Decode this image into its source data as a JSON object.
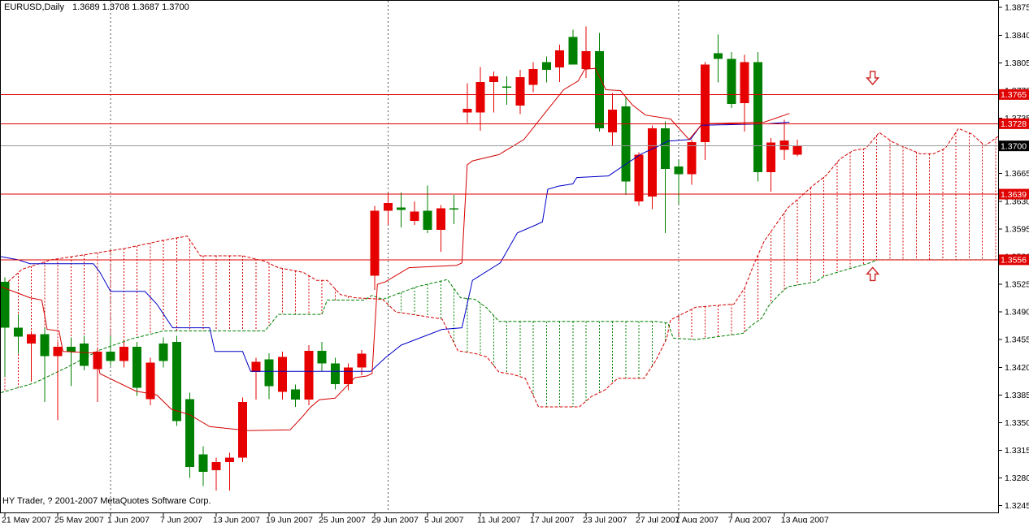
{
  "window": {
    "title": "EURUSD,Daily",
    "quote": "1.3689 1.3708 1.3687 1.3700"
  },
  "footer": {
    "copyright": "HY Trader, ? 2001-2007 MetaQuotes Software Corp."
  },
  "colors": {
    "background": "#ffffff",
    "frame": "#000000",
    "bull": "#e60000",
    "bear": "#008000",
    "doji_accent": "#00cc00",
    "tenkan": "#d40000",
    "kijun": "#0000c8",
    "senkou_a": "#d40000",
    "senkou_b": "#008000",
    "hatch_red": "#d40000",
    "hatch_green": "#008000",
    "price_line": "#e00000",
    "price_tag_bg": "#e00000",
    "price_tag_text": "#ffffff",
    "current_line": "#999999",
    "current_tag_bg": "#000000",
    "current_tag_text": "#ffffff",
    "separator": "#555555",
    "axis_text": "#000000",
    "arrow": "#cc2222"
  },
  "chart_data": {
    "type": "candlestick",
    "symbol": "EURUSD",
    "timeframe": "Daily",
    "title": "EURUSD,Daily  1.3689 1.3708 1.3687 1.3700",
    "ohlc_display": {
      "open": "1.3689",
      "high": "1.3708",
      "low": "1.3687",
      "close": "1.3700"
    },
    "y_axis": {
      "min": 1.3245,
      "max": 1.3875,
      "tick_step": 0.0035,
      "ticks": [
        1.3875,
        1.384,
        1.3805,
        1.377,
        1.3735,
        1.37,
        1.3665,
        1.363,
        1.3595,
        1.356,
        1.3525,
        1.349,
        1.3455,
        1.342,
        1.3385,
        1.335,
        1.3315,
        1.328,
        1.3245
      ]
    },
    "x_axis": {
      "ticks": [
        {
          "label": "21 May 2007",
          "index": 0
        },
        {
          "label": "25 May 2007",
          "index": 4
        },
        {
          "label": "1 Jun 2007",
          "index": 8
        },
        {
          "label": "7 Jun 2007",
          "index": 12
        },
        {
          "label": "13 Jun 2007",
          "index": 16
        },
        {
          "label": "19 Jun 2007",
          "index": 20
        },
        {
          "label": "25 Jun 2007",
          "index": 24
        },
        {
          "label": "29 Jun 2007",
          "index": 28
        },
        {
          "label": "5 Jul 2007",
          "index": 32
        },
        {
          "label": "11 Jul 2007",
          "index": 36
        },
        {
          "label": "17 Jul 2007",
          "index": 40
        },
        {
          "label": "23 Jul 2007",
          "index": 44
        },
        {
          "label": "27 Jul 2007",
          "index": 48
        },
        {
          "label": "1 Aug 2007",
          "index": 51
        },
        {
          "label": "7 Aug 2007",
          "index": 55
        },
        {
          "label": "13 Aug 2007",
          "index": 59
        }
      ]
    },
    "price_lines": [
      {
        "price": 1.3765,
        "label": "1.3765"
      },
      {
        "price": 1.3728,
        "label": "1.3728"
      },
      {
        "price": 1.3639,
        "label": "1.3639"
      },
      {
        "price": 1.3556,
        "label": "1.3556"
      }
    ],
    "current_price_line": {
      "price": 1.37,
      "label": "1.3700"
    },
    "separators": [
      8,
      29,
      51
    ],
    "arrows": [
      {
        "dir": "down",
        "index": 65.7,
        "price": 1.3786
      },
      {
        "dir": "up",
        "index": 65.7,
        "price": 1.3538
      }
    ],
    "candles": [
      [
        1.3528,
        1.3534,
        1.3408,
        1.347
      ],
      [
        1.347,
        1.3487,
        1.3437,
        1.3459
      ],
      [
        1.345,
        1.3466,
        1.3402,
        1.3462
      ],
      [
        1.3462,
        1.347,
        1.3376,
        1.3434
      ],
      [
        1.3434,
        1.3452,
        1.3353,
        1.3446
      ],
      [
        1.3446,
        1.3458,
        1.3396,
        1.344
      ],
      [
        1.345,
        1.346,
        1.3416,
        1.3422
      ],
      [
        1.3418,
        1.3444,
        1.3376,
        1.344
      ],
      [
        1.344,
        1.346,
        1.3422,
        1.3428
      ],
      [
        1.3428,
        1.3452,
        1.342,
        1.3446
      ],
      [
        1.3446,
        1.3452,
        1.3384,
        1.3394
      ],
      [
        1.338,
        1.3432,
        1.3372,
        1.3426
      ],
      [
        1.345,
        1.3458,
        1.342,
        1.3428
      ],
      [
        1.3452,
        1.346,
        1.3346,
        1.3352
      ],
      [
        1.338,
        1.3388,
        1.328,
        1.3294
      ],
      [
        1.331,
        1.332,
        1.327,
        1.3288
      ],
      [
        1.329,
        1.3306,
        1.3264,
        1.33
      ],
      [
        1.33,
        1.3312,
        1.3264,
        1.3306
      ],
      [
        1.3306,
        1.3382,
        1.33,
        1.3376
      ],
      [
        1.3414,
        1.3432,
        1.3379,
        1.3427
      ],
      [
        1.343,
        1.3438,
        1.338,
        1.3396
      ],
      [
        1.3389,
        1.344,
        1.3379,
        1.3433
      ],
      [
        1.3392,
        1.3398,
        1.337,
        1.3379
      ],
      [
        1.3379,
        1.3448,
        1.3372,
        1.3441
      ],
      [
        1.3441,
        1.3452,
        1.3415,
        1.3425
      ],
      [
        1.3425,
        1.3432,
        1.3392,
        1.3399
      ],
      [
        1.3399,
        1.3425,
        1.3391,
        1.342
      ],
      [
        1.342,
        1.3442,
        1.341,
        1.3437
      ],
      [
        1.3536,
        1.3624,
        1.3518,
        1.3618
      ],
      [
        1.3618,
        1.364,
        1.36,
        1.3628
      ],
      [
        1.3622,
        1.3641,
        1.3597,
        1.3619
      ],
      [
        1.3605,
        1.363,
        1.36,
        1.3617
      ],
      [
        1.3618,
        1.365,
        1.359,
        1.3594
      ],
      [
        1.3594,
        1.3625,
        1.3566,
        1.3621
      ],
      [
        1.3621,
        1.3638,
        1.3601,
        1.362
      ],
      [
        1.3742,
        1.3779,
        1.3729,
        1.3747
      ],
      [
        1.3742,
        1.38,
        1.3719,
        1.3781
      ],
      [
        1.3781,
        1.3794,
        1.3742,
        1.3788
      ],
      [
        1.3775,
        1.3788,
        1.3752,
        1.3774
      ],
      [
        1.3751,
        1.3796,
        1.374,
        1.3787
      ],
      [
        1.3777,
        1.3806,
        1.3768,
        1.3797
      ],
      [
        1.3806,
        1.3813,
        1.378,
        1.3796
      ],
      [
        1.3799,
        1.3828,
        1.3781,
        1.3821
      ],
      [
        1.3838,
        1.3847,
        1.3804,
        1.3803
      ],
      [
        1.3797,
        1.3851,
        1.3786,
        1.382
      ],
      [
        1.382,
        1.3843,
        1.3718,
        1.3722
      ],
      [
        1.3717,
        1.3767,
        1.37,
        1.3746
      ],
      [
        1.375,
        1.3762,
        1.3638,
        1.3655
      ],
      [
        1.363,
        1.3692,
        1.3624,
        1.3689
      ],
      [
        1.3636,
        1.3726,
        1.362,
        1.3722
      ],
      [
        1.3722,
        1.3731,
        1.359,
        1.3671
      ],
      [
        1.3674,
        1.3682,
        1.3626,
        1.3664
      ],
      [
        1.3664,
        1.3708,
        1.3651,
        1.3705
      ],
      [
        1.3705,
        1.3806,
        1.3682,
        1.3803
      ],
      [
        1.3817,
        1.3841,
        1.378,
        1.381
      ],
      [
        1.381,
        1.3819,
        1.3748,
        1.3753
      ],
      [
        1.3754,
        1.3815,
        1.3718,
        1.3806
      ],
      [
        1.3806,
        1.3819,
        1.3655,
        1.3667
      ],
      [
        1.3667,
        1.371,
        1.3642,
        1.3704
      ],
      [
        1.3695,
        1.3733,
        1.3682,
        1.3707
      ],
      [
        1.3689,
        1.3708,
        1.3687,
        1.37
      ]
    ],
    "ichimoku": {
      "tenkan": [
        [
          -0.3,
          1.3522
        ],
        [
          1.9,
          1.3508
        ],
        [
          2.8,
          1.3505
        ],
        [
          3.2,
          1.3468
        ],
        [
          4.1,
          1.3466
        ],
        [
          4.4,
          1.344
        ],
        [
          6.9,
          1.3438
        ],
        [
          7.2,
          1.3412
        ],
        [
          9.9,
          1.339
        ],
        [
          11.5,
          1.3385
        ],
        [
          12.6,
          1.3367
        ],
        [
          14.0,
          1.336
        ],
        [
          15.5,
          1.3345
        ],
        [
          18.4,
          1.334
        ],
        [
          21.6,
          1.3341
        ],
        [
          22.5,
          1.3357
        ],
        [
          23.1,
          1.3369
        ],
        [
          23.8,
          1.3379
        ],
        [
          25.0,
          1.3381
        ],
        [
          26.5,
          1.3407
        ],
        [
          27.4,
          1.3409
        ],
        [
          27.8,
          1.3412
        ],
        [
          28.2,
          1.3525
        ],
        [
          28.8,
          1.3528
        ],
        [
          30.6,
          1.3546
        ],
        [
          34.2,
          1.3549
        ],
        [
          34.6,
          1.3552
        ],
        [
          35.0,
          1.3676
        ],
        [
          35.4,
          1.3681
        ],
        [
          37.4,
          1.3689
        ],
        [
          39.3,
          1.3708
        ],
        [
          41.1,
          1.3746
        ],
        [
          42.3,
          1.3771
        ],
        [
          43.4,
          1.3782
        ],
        [
          43.9,
          1.3797
        ],
        [
          44.7,
          1.3798
        ],
        [
          45.5,
          1.3771
        ],
        [
          46.6,
          1.377
        ],
        [
          47.5,
          1.3752
        ],
        [
          48.5,
          1.3739
        ],
        [
          50.4,
          1.3734
        ],
        [
          51.8,
          1.3708
        ],
        [
          52.8,
          1.3728
        ],
        [
          57.5,
          1.373
        ],
        [
          59.4,
          1.3741
        ]
      ],
      "kijun": [
        [
          -0.3,
          1.356
        ],
        [
          1.0,
          1.3556
        ],
        [
          1.9,
          1.3551
        ],
        [
          6.7,
          1.3551
        ],
        [
          7.2,
          1.354
        ],
        [
          8.0,
          1.3516
        ],
        [
          10.6,
          1.3516
        ],
        [
          11.5,
          1.35
        ],
        [
          12.7,
          1.347
        ],
        [
          15.5,
          1.347
        ],
        [
          15.9,
          1.344
        ],
        [
          18.0,
          1.344
        ],
        [
          18.6,
          1.3415
        ],
        [
          27.7,
          1.3415
        ],
        [
          28.8,
          1.3432
        ],
        [
          30.0,
          1.3448
        ],
        [
          33.1,
          1.3468
        ],
        [
          34.6,
          1.347
        ],
        [
          35.4,
          1.353
        ],
        [
          37.5,
          1.3552
        ],
        [
          38.8,
          1.359
        ],
        [
          40.2,
          1.36
        ],
        [
          40.7,
          1.3604
        ],
        [
          41.1,
          1.3645
        ],
        [
          41.9,
          1.3649
        ],
        [
          43.0,
          1.3652
        ],
        [
          43.3,
          1.366
        ],
        [
          45.7,
          1.3662
        ],
        [
          47.3,
          1.368
        ],
        [
          48.2,
          1.369
        ],
        [
          49.4,
          1.3699
        ],
        [
          50.2,
          1.3706
        ],
        [
          51.9,
          1.3708
        ],
        [
          52.7,
          1.3726
        ],
        [
          57.8,
          1.3728
        ],
        [
          59.4,
          1.373
        ]
      ],
      "senkou_a": [
        [
          -0.3,
          1.352
        ],
        [
          1.3,
          1.3544
        ],
        [
          3.5,
          1.3556
        ],
        [
          5.9,
          1.3562
        ],
        [
          9.0,
          1.357
        ],
        [
          11.8,
          1.358
        ],
        [
          13.8,
          1.3586
        ],
        [
          14.8,
          1.3561
        ],
        [
          18.0,
          1.3561
        ],
        [
          19.7,
          1.3554
        ],
        [
          20.7,
          1.3546
        ],
        [
          22.6,
          1.354
        ],
        [
          23.6,
          1.353
        ],
        [
          24.4,
          1.353
        ],
        [
          25.4,
          1.3512
        ],
        [
          26.5,
          1.3508
        ],
        [
          28.6,
          1.3506
        ],
        [
          29.6,
          1.349
        ],
        [
          33.1,
          1.3481
        ],
        [
          34.3,
          1.3441
        ],
        [
          35.7,
          1.3437
        ],
        [
          36.5,
          1.3433
        ],
        [
          37.4,
          1.3414
        ],
        [
          38.5,
          1.3411
        ],
        [
          39.4,
          1.3406
        ],
        [
          40.4,
          1.337
        ],
        [
          43.5,
          1.337
        ],
        [
          44.4,
          1.3383
        ],
        [
          45.4,
          1.3391
        ],
        [
          46.4,
          1.3406
        ],
        [
          48.4,
          1.3406
        ],
        [
          49.3,
          1.3429
        ],
        [
          50.1,
          1.3456
        ],
        [
          50.4,
          1.348
        ],
        [
          52.3,
          1.3496
        ],
        [
          55.2,
          1.35
        ],
        [
          56.0,
          1.352
        ],
        [
          56.7,
          1.355
        ],
        [
          57.5,
          1.358
        ],
        [
          58.4,
          1.3601
        ],
        [
          59.3,
          1.3622
        ],
        [
          60.2,
          1.3635
        ],
        [
          61.2,
          1.365
        ],
        [
          62.2,
          1.3663
        ],
        [
          63.2,
          1.3683
        ],
        [
          64.2,
          1.3694
        ],
        [
          65.2,
          1.3697
        ],
        [
          66.2,
          1.3717
        ],
        [
          67.2,
          1.3705
        ],
        [
          68.3,
          1.3697
        ],
        [
          69.3,
          1.369
        ],
        [
          70.3,
          1.369
        ],
        [
          71.2,
          1.3697
        ],
        [
          72.2,
          1.3722
        ],
        [
          73.2,
          1.3715
        ],
        [
          74.2,
          1.37
        ],
        [
          75.2,
          1.3712
        ]
      ],
      "senkou_b": [
        [
          -0.3,
          1.3388
        ],
        [
          2.2,
          1.34
        ],
        [
          4.7,
          1.342
        ],
        [
          7.2,
          1.3442
        ],
        [
          9.6,
          1.3456
        ],
        [
          12.0,
          1.3466
        ],
        [
          19.7,
          1.3466
        ],
        [
          20.7,
          1.3487
        ],
        [
          24.0,
          1.3487
        ],
        [
          24.4,
          1.3505
        ],
        [
          27.2,
          1.3505
        ],
        [
          27.8,
          1.3511
        ],
        [
          28.6,
          1.3506
        ],
        [
          29.6,
          1.3512
        ],
        [
          31.2,
          1.3522
        ],
        [
          33.5,
          1.3531
        ],
        [
          34.5,
          1.3508
        ],
        [
          35.6,
          1.3506
        ],
        [
          36.5,
          1.3495
        ],
        [
          37.4,
          1.3478
        ],
        [
          49.3,
          1.3478
        ],
        [
          50.2,
          1.3476
        ],
        [
          50.6,
          1.3457
        ],
        [
          52.3,
          1.3455
        ],
        [
          55.9,
          1.3463
        ],
        [
          56.2,
          1.3468
        ],
        [
          56.7,
          1.3475
        ],
        [
          57.3,
          1.3482
        ],
        [
          57.8,
          1.3497
        ],
        [
          58.6,
          1.3512
        ],
        [
          59.3,
          1.3522
        ],
        [
          61.4,
          1.3528
        ],
        [
          62.0,
          1.3535
        ],
        [
          64.0,
          1.3545
        ],
        [
          65.3,
          1.3551
        ],
        [
          66.1,
          1.3556
        ],
        [
          75.2,
          1.3556
        ]
      ]
    },
    "legend_position": "none",
    "grid": false
  }
}
